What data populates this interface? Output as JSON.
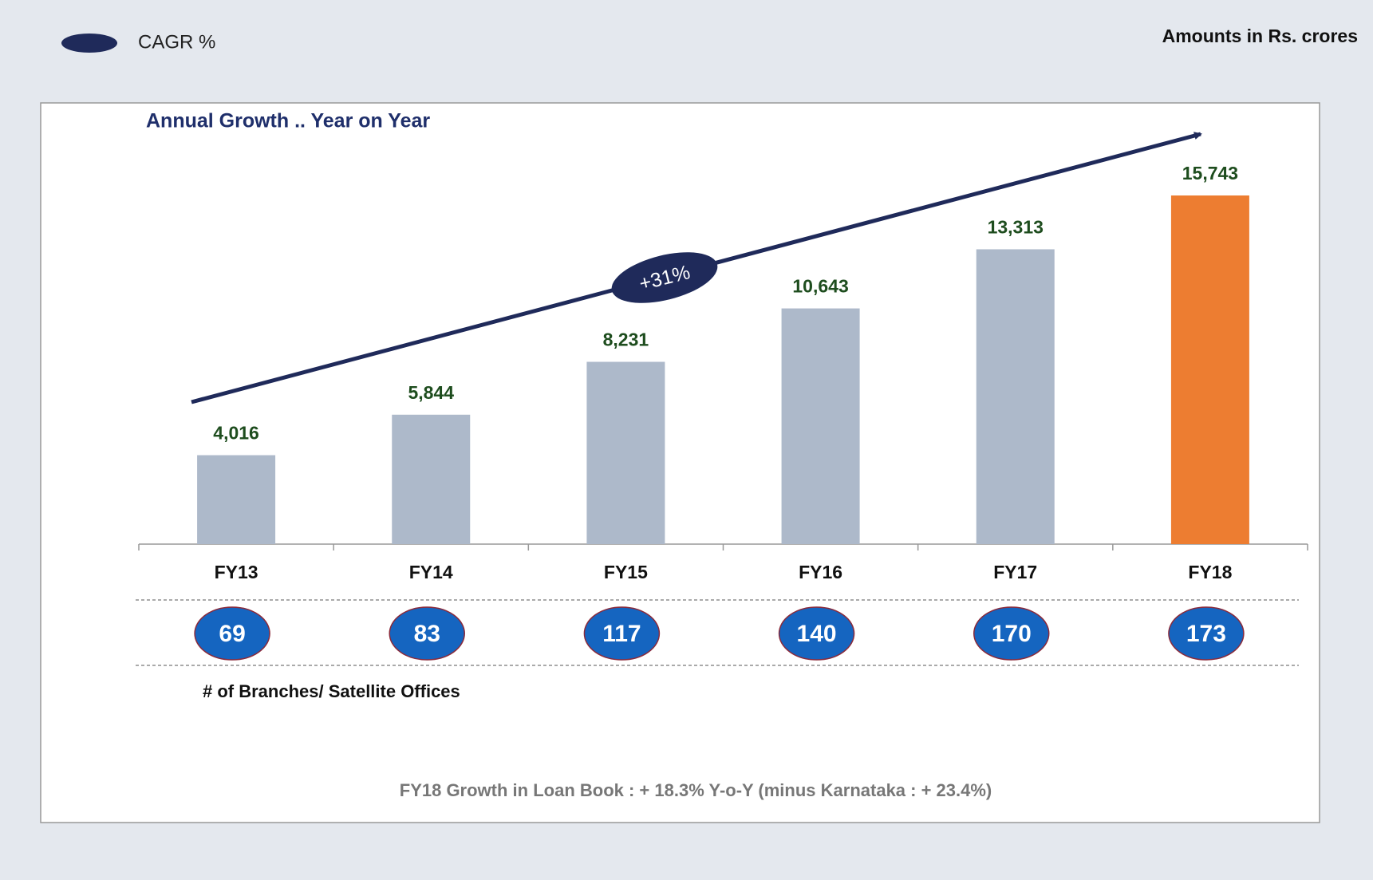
{
  "chart_data": {
    "type": "bar",
    "title": "Annual Growth .. Year on Year",
    "note": "Amounts in Rs. crores",
    "legend": "CAGR %",
    "annotation": "+31%",
    "categories": [
      "FY13",
      "FY14",
      "FY15",
      "FY16",
      "FY17",
      "FY18"
    ],
    "values": [
      4016,
      5844,
      8231,
      10643,
      13313,
      15743
    ],
    "value_labels": [
      "4,016",
      "5,844",
      "8,231",
      "10,643",
      "13,313",
      "15,743"
    ],
    "colors": [
      "#adb9ca",
      "#adb9ca",
      "#adb9ca",
      "#adb9ca",
      "#adb9ca",
      "#ed7d31"
    ],
    "branches": {
      "label": "# of Branches/ Satellite Offices",
      "values": [
        69,
        83,
        117,
        140,
        170,
        173
      ]
    },
    "footnote": "FY18 Growth in Loan Book : + 18.3% Y-o-Y  (minus Karnataka : + 23.4%)"
  }
}
